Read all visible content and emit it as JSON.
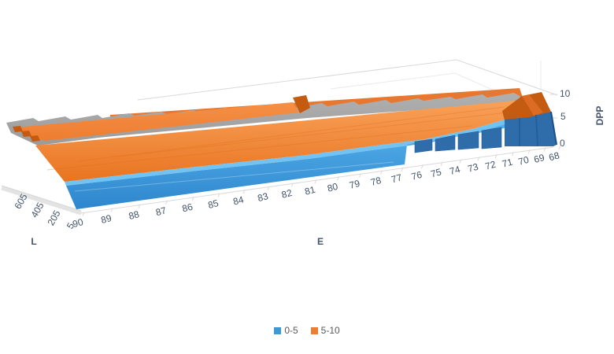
{
  "chart": {
    "axes": {
      "x": {
        "title": "E",
        "labels": [
          "90",
          "89",
          "88",
          "87",
          "86",
          "85",
          "84",
          "83",
          "82",
          "81",
          "80",
          "79",
          "78",
          "77",
          "76",
          "75",
          "74",
          "73",
          "72",
          "71",
          "70",
          "69",
          "68"
        ]
      },
      "depth": {
        "title": "L",
        "labels": [
          "5",
          "205",
          "405",
          "605"
        ]
      },
      "z": {
        "title": "DPP",
        "labels": [
          "0",
          "5",
          "10"
        ]
      }
    },
    "legend": {
      "items": [
        {
          "label": "0-5",
          "color": "#3E98D3"
        },
        {
          "label": "5-10",
          "color": "#ED7D31"
        }
      ]
    },
    "colors": {
      "band_0_5": "#3E98D3",
      "band_5_10": "#ED7D31",
      "band_0_5_dark": "#2E6DA9",
      "band_5_10_dark": "#C55A11",
      "clipped_plateau_gray": "#A6A6A6",
      "gridline": "#D9D9D9",
      "axis_text": "#44546A",
      "legend_text": "#595959"
    }
  },
  "chart_data": {
    "type": "surface",
    "title": "",
    "x_axis": {
      "label": "E",
      "categories": [
        90,
        89,
        88,
        87,
        86,
        85,
        84,
        83,
        82,
        81,
        80,
        79,
        78,
        77,
        76,
        75,
        74,
        73,
        72,
        71,
        70,
        69,
        68
      ],
      "direction": "values decrease left to right"
    },
    "depth_axis": {
      "label": "L",
      "tick_labels": [
        5,
        205,
        405,
        605
      ],
      "front_value": 5,
      "back_value": 605
    },
    "z_axis": {
      "label": "DPP",
      "ticks": [
        0,
        5,
        10
      ],
      "range": [
        0,
        10
      ],
      "clipped_above": 10
    },
    "legend": [
      {
        "label": "0-5",
        "color": "#3E98D3",
        "band": [
          0,
          5
        ]
      },
      {
        "label": "5-10",
        "color": "#ED7D31",
        "band": [
          5,
          10
        ]
      }
    ],
    "bands_rendered": [
      "blue 0-5 front band",
      "orange 5-10 slope",
      "gray plateau where DPP exceeds axis max 10 (clipped top)"
    ],
    "front_row_estimate_L5_DPP_by_E": [
      12,
      12,
      12,
      12,
      12,
      12,
      12,
      12,
      12,
      12,
      12,
      12,
      12,
      12,
      11,
      10,
      9,
      8,
      6,
      5,
      3,
      2,
      0
    ],
    "description": "3D surface: DPP is high (above 10, clipped flat gray) for E from 90 to about 73 across all L, then falls steeply in stepped columns to 0 at E=68; colored bands 0-5 blue and 5-10 orange.",
    "layout": {
      "grid": "faint back-wall gridlines",
      "legend_position": "bottom-center"
    }
  }
}
